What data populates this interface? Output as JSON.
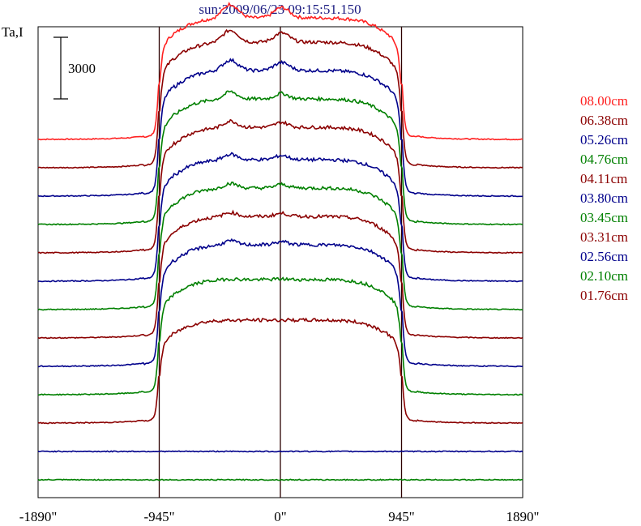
{
  "title": "sun:2009/06/23 09:15:51.150",
  "ylabel": "Ta,I",
  "scale_bar_label": "3000",
  "chart_data": {
    "type": "line",
    "title": "sun:2009/06/23 09:15:51.150",
    "ylabel": "Ta,I",
    "xlim": [
      -1890,
      1890
    ],
    "x_ticks": [
      -1890,
      -945,
      0,
      945,
      1890
    ],
    "x_tick_labels": [
      "-1890\"",
      "-945\"",
      "0\"",
      "945\"",
      "1890\""
    ],
    "vlines": [
      -945,
      0,
      945
    ],
    "scale_bar": 3000,
    "grid": false,
    "legend_position": "right",
    "series": [
      {
        "name": "08.00cm",
        "color": "#ff2020",
        "offset": 210,
        "disk_level": 150,
        "bump": 17,
        "bump_width": 14
      },
      {
        "name": "06.38cm",
        "color": "#8b0000",
        "offset": 175,
        "disk_level": 155,
        "bump": 15,
        "bump_width": 14
      },
      {
        "name": "05.26cm",
        "color": "#00008b",
        "offset": 140,
        "disk_level": 155,
        "bump": 13,
        "bump_width": 14
      },
      {
        "name": "04.76cm",
        "color": "#008000",
        "offset": 105,
        "disk_level": 155,
        "bump": 9,
        "bump_width": 12
      },
      {
        "name": "04.11cm",
        "color": "#8b0000",
        "offset": 70,
        "disk_level": 155,
        "bump": 8,
        "bump_width": 12
      },
      {
        "name": "03.80cm",
        "color": "#00008b",
        "offset": 35,
        "disk_level": 150,
        "bump": 7,
        "bump_width": 12
      },
      {
        "name": "03.45cm",
        "color": "#008000",
        "offset": 0,
        "disk_level": 150,
        "bump": 6,
        "bump_width": 12
      },
      {
        "name": "03.31cm",
        "color": "#8b0000",
        "offset": -35,
        "disk_level": 150,
        "bump": 5,
        "bump_width": 12
      },
      {
        "name": "02.56cm",
        "color": "#00008b",
        "offset": -70,
        "disk_level": 150,
        "bump": 5,
        "bump_width": 12
      },
      {
        "name": "02.10cm",
        "color": "#008000",
        "offset": -105,
        "disk_level": 142,
        "bump": 1,
        "bump_width": 12
      },
      {
        "name": "01.76cm",
        "color": "#8b0000",
        "offset": -140,
        "disk_level": 127,
        "bump": 0,
        "bump_width": 12
      }
    ],
    "extra_traces": [
      {
        "color": "#00008b",
        "offset": -175,
        "disk_level": 0,
        "bump": 0,
        "bump_width": 12
      },
      {
        "color": "#008000",
        "offset": -210,
        "disk_level": 0,
        "bump": 0,
        "bump_width": 12
      }
    ]
  },
  "colors": {
    "axis": "#000000",
    "marker_line": "#2b0000",
    "title": "#1a1a80"
  }
}
